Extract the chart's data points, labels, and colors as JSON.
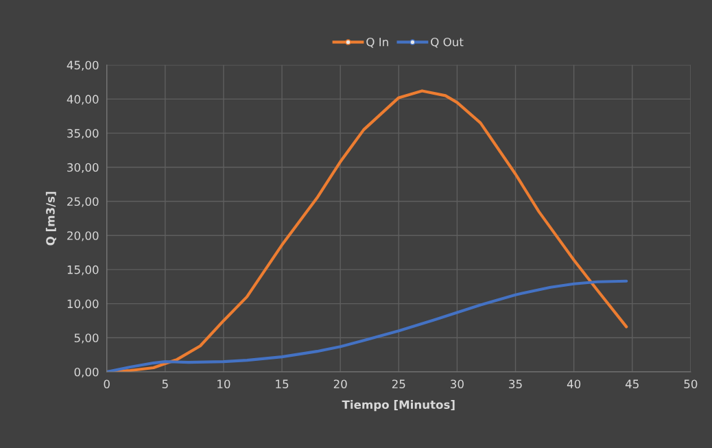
{
  "chart_data": {
    "type": "line",
    "xlabel": "Tiempo [Minutos]",
    "ylabel": "Q [m3/s]",
    "xlim": [
      0,
      50
    ],
    "xticks": [
      0,
      5,
      10,
      15,
      20,
      25,
      30,
      35,
      40,
      45,
      50
    ],
    "ylim": [
      0,
      45
    ],
    "yticks": [
      {
        "value": 0,
        "label": "0,00"
      },
      {
        "value": 5,
        "label": "5,00"
      },
      {
        "value": 10,
        "label": "10,00"
      },
      {
        "value": 15,
        "label": "15,00"
      },
      {
        "value": 20,
        "label": "20,00"
      },
      {
        "value": 25,
        "label": "25,00"
      },
      {
        "value": 30,
        "label": "30,00"
      },
      {
        "value": 35,
        "label": "35,00"
      },
      {
        "value": 40,
        "label": "40,00"
      },
      {
        "value": 45,
        "label": "45,00"
      }
    ],
    "grid": true,
    "legend": "top",
    "line_style": "solid",
    "series": [
      {
        "name": "Q In",
        "color": "#ed7d31",
        "x": [
          0,
          2,
          4,
          5,
          6,
          8,
          10,
          12,
          15,
          18,
          20,
          22,
          25,
          27,
          29,
          30,
          32,
          33,
          35,
          37,
          40,
          42,
          44.5
        ],
        "values": [
          0,
          0.2,
          0.6,
          1.2,
          1.8,
          3.8,
          7.5,
          11,
          18.6,
          25.5,
          30.8,
          35.5,
          40.2,
          41.2,
          40.5,
          39.5,
          36.5,
          34,
          29,
          23.5,
          16.4,
          12,
          6.6
        ]
      },
      {
        "name": "Q Out",
        "color": "#4472c4",
        "x": [
          0,
          2,
          4,
          5,
          7,
          10,
          12,
          15,
          18,
          20,
          22,
          25,
          28,
          30,
          32,
          35,
          38,
          40,
          42,
          44.5
        ],
        "values": [
          0,
          0.7,
          1.3,
          1.5,
          1.4,
          1.5,
          1.7,
          2.2,
          3.0,
          3.7,
          4.6,
          6.0,
          7.6,
          8.7,
          9.8,
          11.3,
          12.4,
          12.9,
          13.2,
          13.3
        ]
      }
    ]
  }
}
